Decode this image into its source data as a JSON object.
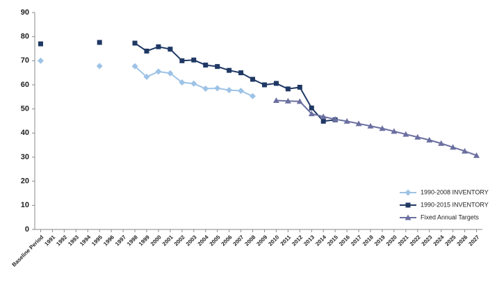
{
  "chart_data": {
    "type": "line",
    "categories": [
      "Baseline Period",
      "1991",
      "1992",
      "1993",
      "1994",
      "1995",
      "1996",
      "1997",
      "1998",
      "1999",
      "2000",
      "2001",
      "2002",
      "2003",
      "2004",
      "2005",
      "2006",
      "2007",
      "2008",
      "2009",
      "2010",
      "2011",
      "2012",
      "2013",
      "2014",
      "2015",
      "2016",
      "2017",
      "2018",
      "2019",
      "2020",
      "2021",
      "2022",
      "2023",
      "2024",
      "2025",
      "2026",
      "2027"
    ],
    "series": [
      {
        "name": "1990-2008 INVENTORY",
        "color": "#9dc3e6",
        "marker": "diamond",
        "values": [
          70,
          null,
          null,
          null,
          null,
          67.8,
          null,
          null,
          67.7,
          63.3,
          65.5,
          64.8,
          61,
          60.5,
          58.4,
          58.6,
          57.8,
          57.5,
          55.3,
          null,
          null,
          null,
          null,
          null,
          null,
          null,
          null,
          null,
          null,
          null,
          null,
          null,
          null,
          null,
          null,
          null,
          null,
          null
        ]
      },
      {
        "name": "1990-2015 INVENTORY",
        "color": "#1f3864",
        "marker": "square",
        "values": [
          77,
          null,
          null,
          null,
          null,
          77.6,
          null,
          null,
          77.3,
          74,
          75.8,
          74.8,
          70,
          70.3,
          68.2,
          67.6,
          66,
          65,
          62.3,
          60,
          60.6,
          58.3,
          59,
          50.4,
          44.9,
          45.5,
          null,
          null,
          null,
          null,
          null,
          null,
          null,
          null,
          null,
          null,
          null,
          null
        ]
      },
      {
        "name": "Fixed Annual Targets",
        "color": "#6b6fa0",
        "marker": "triangle",
        "values": [
          null,
          null,
          null,
          null,
          null,
          null,
          null,
          null,
          null,
          null,
          null,
          null,
          null,
          null,
          null,
          null,
          null,
          null,
          null,
          null,
          53.5,
          53.3,
          53.1,
          48,
          46.8,
          45.7,
          44.9,
          43.9,
          42.9,
          41.9,
          40.7,
          39.5,
          38.3,
          37.1,
          35.7,
          34.1,
          32.5,
          30.7
        ]
      }
    ],
    "ylim": [
      0,
      90
    ],
    "yticks": [
      0,
      10,
      20,
      30,
      40,
      50,
      60,
      70,
      80,
      90
    ],
    "grid": false,
    "legend": "lower right"
  }
}
